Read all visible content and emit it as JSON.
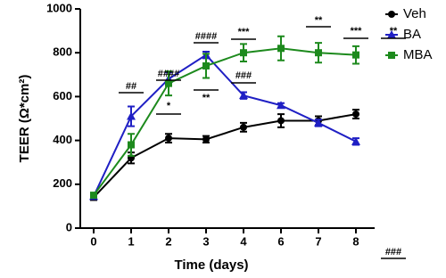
{
  "chart_data": {
    "type": "line",
    "xlabel": "Time (days)",
    "ylabel": "TEER (Ω*cm²)",
    "categories": [
      "0",
      "1",
      "2",
      "3",
      "4",
      "6",
      "7",
      "8"
    ],
    "ylim": [
      0,
      1000
    ],
    "yticks": [
      0,
      200,
      400,
      600,
      800,
      1000
    ],
    "legend": "upper right",
    "series": [
      {
        "name": "Veh",
        "color": "#000000",
        "marker": "circle",
        "values": [
          140,
          320,
          410,
          405,
          460,
          490,
          490,
          520
        ],
        "errors": [
          12,
          25,
          20,
          15,
          20,
          30,
          20,
          20
        ]
      },
      {
        "name": "BA",
        "color": "#1f1fc4",
        "marker": "triangle",
        "values": [
          145,
          510,
          680,
          790,
          605,
          560,
          480,
          395
        ],
        "errors": [
          10,
          45,
          30,
          15,
          15,
          10,
          15,
          15
        ]
      },
      {
        "name": "MBA",
        "color": "#1d8a1d",
        "marker": "square",
        "values": [
          150,
          380,
          660,
          740,
          800,
          820,
          800,
          790
        ],
        "errors": [
          10,
          50,
          55,
          55,
          40,
          55,
          45,
          40
        ]
      }
    ],
    "annotations": [
      {
        "text": "##"
      },
      {
        "text": "####"
      },
      {
        "text": "*"
      },
      {
        "text": "####"
      },
      {
        "text": "**"
      },
      {
        "text": "***"
      },
      {
        "text": "###"
      },
      {
        "text": "**"
      },
      {
        "text": "***"
      },
      {
        "text": "**"
      },
      {
        "text": "###"
      }
    ]
  }
}
